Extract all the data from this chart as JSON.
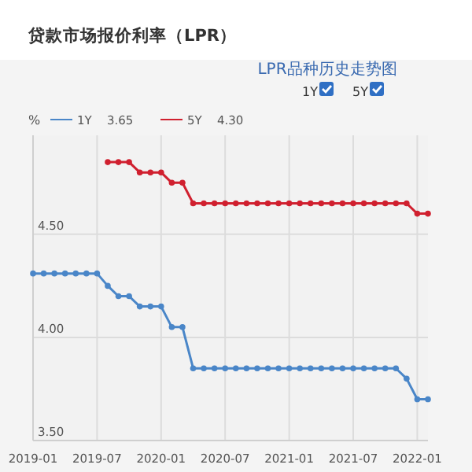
{
  "chart_data": {
    "type": "line",
    "title": "贷款市场报价利率（LPR）",
    "subtitle": "LPR品种历史走势图",
    "ylabel": "%",
    "x": [
      "2019-01",
      "2019-02",
      "2019-03",
      "2019-04",
      "2019-05",
      "2019-06",
      "2019-07",
      "2019-08",
      "2019-09",
      "2019-10",
      "2019-11",
      "2019-12",
      "2020-01",
      "2020-02",
      "2020-03",
      "2020-04",
      "2020-05",
      "2020-06",
      "2020-07",
      "2020-08",
      "2020-09",
      "2020-10",
      "2020-11",
      "2020-12",
      "2021-01",
      "2021-02",
      "2021-03",
      "2021-04",
      "2021-05",
      "2021-06",
      "2021-07",
      "2021-08",
      "2021-09",
      "2021-10",
      "2021-11",
      "2021-12",
      "2022-01",
      "2022-02"
    ],
    "series": [
      {
        "name": "1Y",
        "color": "#4a86c8",
        "values": [
          4.31,
          4.31,
          4.31,
          4.31,
          4.31,
          4.31,
          4.31,
          4.25,
          4.2,
          4.2,
          4.15,
          4.15,
          4.15,
          4.05,
          4.05,
          3.85,
          3.85,
          3.85,
          3.85,
          3.85,
          3.85,
          3.85,
          3.85,
          3.85,
          3.85,
          3.85,
          3.85,
          3.85,
          3.85,
          3.85,
          3.85,
          3.85,
          3.85,
          3.85,
          3.85,
          3.8,
          3.7,
          3.7
        ]
      },
      {
        "name": "5Y",
        "color": "#d0202f",
        "values": [
          null,
          null,
          null,
          null,
          null,
          null,
          null,
          4.85,
          4.85,
          4.85,
          4.8,
          4.8,
          4.8,
          4.75,
          4.75,
          4.65,
          4.65,
          4.65,
          4.65,
          4.65,
          4.65,
          4.65,
          4.65,
          4.65,
          4.65,
          4.65,
          4.65,
          4.65,
          4.65,
          4.65,
          4.65,
          4.65,
          4.65,
          4.65,
          4.65,
          4.65,
          4.6,
          4.6
        ]
      }
    ],
    "annotations": [
      "3.65",
      "4.30"
    ],
    "xlim": [
      "2019-01",
      "2022-02"
    ],
    "xticks": [
      "2019-01",
      "2019-07",
      "2020-01",
      "2020-07",
      "2021-01",
      "2021-07",
      "2022-01"
    ],
    "ylim": [
      3.5,
      4.98
    ],
    "yticks": [
      {
        "value": 3.5,
        "label": "3.50"
      },
      {
        "value": 4.0,
        "label": "4.00"
      },
      {
        "value": 4.5,
        "label": "4.50"
      }
    ],
    "grid": true,
    "legend": "top left",
    "marker": "circle",
    "line_style": "solid"
  }
}
